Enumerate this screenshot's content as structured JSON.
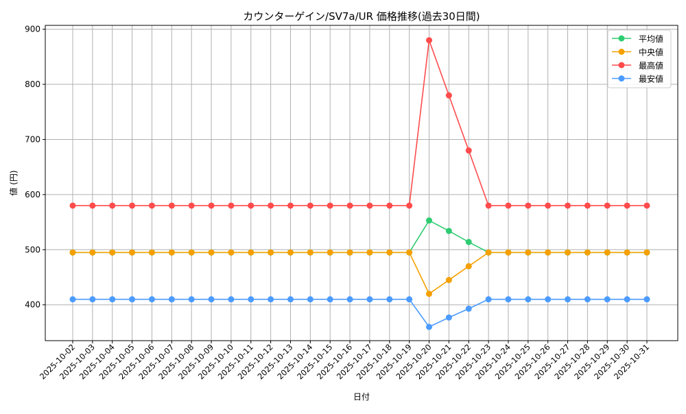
{
  "chart_data": {
    "type": "line",
    "title": "カウンターゲイン/SV7a/UR 価格推移(過去30日間)",
    "xlabel": "日付",
    "ylabel": "値 (円)",
    "ylim": [
      335,
      907
    ],
    "yticks": [
      400,
      500,
      600,
      700,
      800,
      900
    ],
    "grid": true,
    "legend_position": "top-right",
    "x": [
      "2025-10-02",
      "2025-10-03",
      "2025-10-04",
      "2025-10-05",
      "2025-10-06",
      "2025-10-07",
      "2025-10-08",
      "2025-10-09",
      "2025-10-10",
      "2025-10-11",
      "2025-10-12",
      "2025-10-13",
      "2025-10-14",
      "2025-10-15",
      "2025-10-16",
      "2025-10-17",
      "2025-10-18",
      "2025-10-19",
      "2025-10-20",
      "2025-10-21",
      "2025-10-22",
      "2025-10-23",
      "2025-10-24",
      "2025-10-25",
      "2025-10-26",
      "2025-10-27",
      "2025-10-28",
      "2025-10-29",
      "2025-10-30",
      "2025-10-31"
    ],
    "series": [
      {
        "name": "平均値",
        "color": "#2ecc71",
        "values": [
          495,
          495,
          495,
          495,
          495,
          495,
          495,
          495,
          495,
          495,
          495,
          495,
          495,
          495,
          495,
          495,
          495,
          495,
          553,
          534,
          514,
          495,
          495,
          495,
          495,
          495,
          495,
          495,
          495,
          495
        ]
      },
      {
        "name": "中央値",
        "color": "#f5a000",
        "values": [
          495,
          495,
          495,
          495,
          495,
          495,
          495,
          495,
          495,
          495,
          495,
          495,
          495,
          495,
          495,
          495,
          495,
          495,
          420,
          445,
          470,
          495,
          495,
          495,
          495,
          495,
          495,
          495,
          495,
          495
        ]
      },
      {
        "name": "最高値",
        "color": "#ff4b4b",
        "values": [
          580,
          580,
          580,
          580,
          580,
          580,
          580,
          580,
          580,
          580,
          580,
          580,
          580,
          580,
          580,
          580,
          580,
          580,
          880,
          780,
          680,
          580,
          580,
          580,
          580,
          580,
          580,
          580,
          580,
          580
        ]
      },
      {
        "name": "最安値",
        "color": "#4b9bff",
        "values": [
          410,
          410,
          410,
          410,
          410,
          410,
          410,
          410,
          410,
          410,
          410,
          410,
          410,
          410,
          410,
          410,
          410,
          410,
          360,
          377,
          393,
          410,
          410,
          410,
          410,
          410,
          410,
          410,
          410,
          410
        ]
      }
    ]
  }
}
